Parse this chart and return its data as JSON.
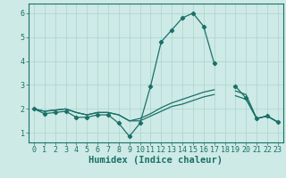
{
  "title": "",
  "xlabel": "Humidex (Indice chaleur)",
  "bg_color": "#ceeae6",
  "line_color": "#1a7068",
  "xlim": [
    -0.5,
    23.5
  ],
  "ylim": [
    0.6,
    6.4
  ],
  "xticks": [
    0,
    1,
    2,
    3,
    4,
    5,
    6,
    7,
    8,
    9,
    10,
    11,
    12,
    13,
    14,
    15,
    16,
    17,
    18,
    19,
    20,
    21,
    22,
    23
  ],
  "yticks": [
    1,
    2,
    3,
    4,
    5,
    6
  ],
  "series1_x": [
    0,
    1,
    2,
    3,
    4,
    5,
    6,
    7,
    8,
    9,
    10,
    11,
    12,
    13,
    14,
    15,
    16,
    17,
    18,
    19,
    20,
    21,
    22,
    23
  ],
  "series1_y": [
    2.0,
    1.8,
    1.85,
    1.9,
    1.65,
    1.65,
    1.75,
    1.75,
    1.4,
    0.85,
    1.4,
    2.95,
    4.8,
    5.3,
    5.8,
    6.0,
    5.45,
    3.9,
    null,
    2.95,
    2.45,
    1.6,
    1.7,
    1.45
  ],
  "series2_x": [
    0,
    1,
    2,
    3,
    4,
    5,
    6,
    7,
    8,
    9,
    10,
    11,
    12,
    13,
    14,
    15,
    16,
    17,
    18,
    19,
    20,
    21,
    22,
    23
  ],
  "series2_y": [
    2.0,
    1.9,
    1.95,
    2.0,
    1.85,
    1.75,
    1.85,
    1.85,
    1.75,
    1.5,
    1.5,
    1.7,
    1.9,
    2.1,
    2.2,
    2.35,
    2.5,
    2.6,
    null,
    2.55,
    2.4,
    1.6,
    1.7,
    1.45
  ],
  "series3_x": [
    0,
    1,
    2,
    3,
    4,
    5,
    6,
    7,
    8,
    9,
    10,
    11,
    12,
    13,
    14,
    15,
    16,
    17,
    18,
    19,
    20,
    21,
    22,
    23
  ],
  "series3_y": [
    2.0,
    1.9,
    1.95,
    2.0,
    1.85,
    1.75,
    1.85,
    1.85,
    1.75,
    1.5,
    1.6,
    1.8,
    2.05,
    2.25,
    2.4,
    2.55,
    2.7,
    2.8,
    null,
    2.75,
    2.6,
    1.6,
    1.7,
    1.45
  ],
  "grid_color": "#aad4d0",
  "font_color": "#1a7068",
  "xlabel_fontsize": 7.5,
  "tick_fontsize": 6.0
}
